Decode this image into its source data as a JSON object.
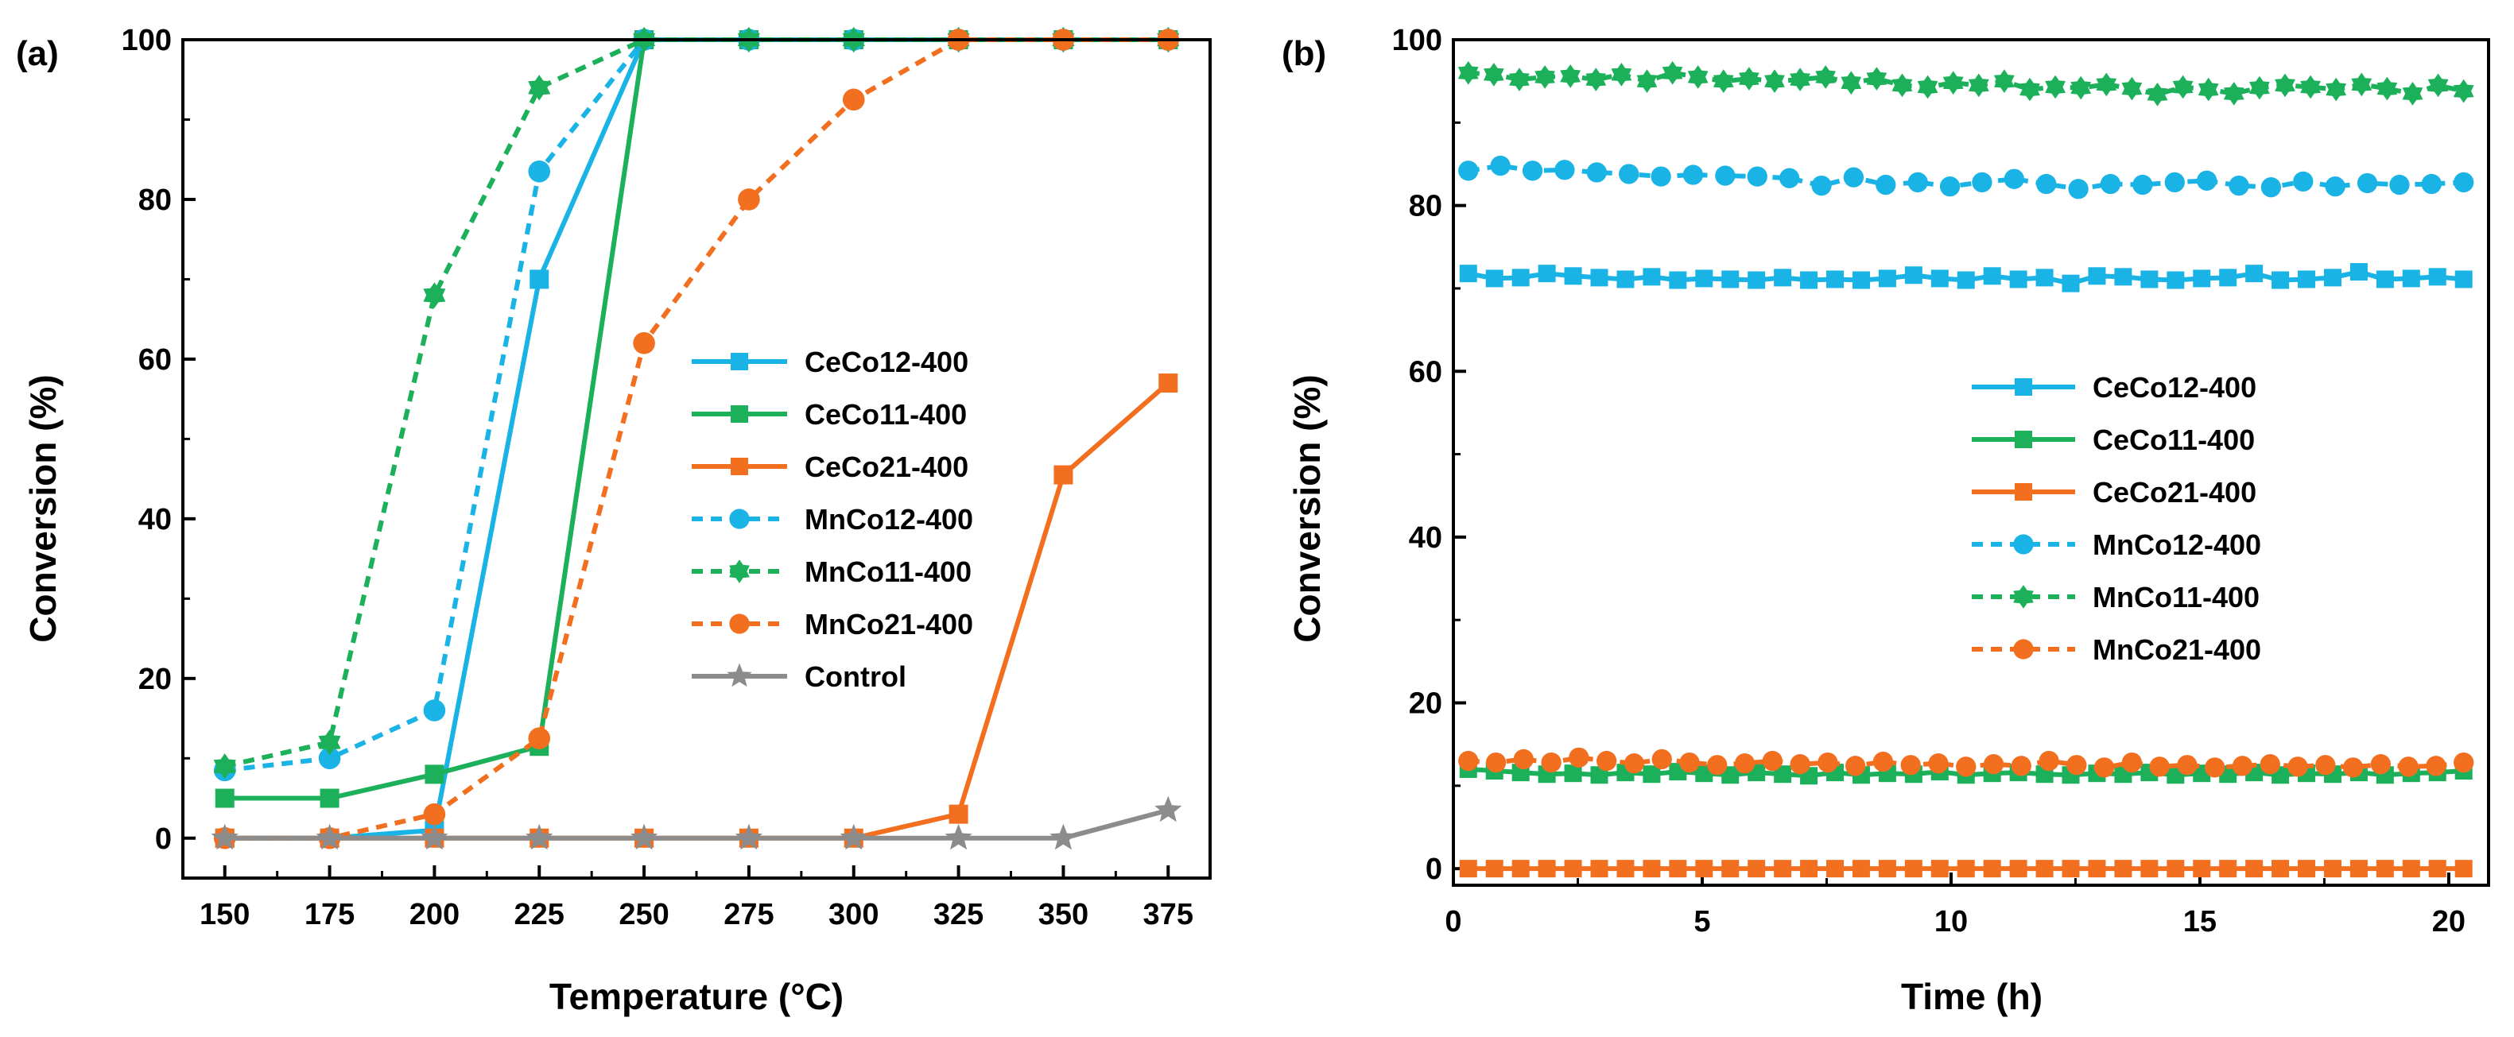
{
  "chart_data": [
    {
      "panel_label": "(a)",
      "type": "line",
      "xlabel": "Temperature (°C)",
      "ylabel": "Conversion (%)",
      "xlim": [
        140,
        385
      ],
      "ylim": [
        -5,
        100
      ],
      "x": [
        150,
        175,
        200,
        225,
        250,
        275,
        300,
        325,
        350,
        375
      ],
      "xticks": [
        "150",
        "175",
        "200",
        "225",
        "250",
        "275",
        "300",
        "325",
        "350",
        "375"
      ],
      "yticks": [
        "0",
        "20",
        "40",
        "60",
        "80",
        "100"
      ],
      "legend_position": "center-right",
      "series": [
        {
          "name": "CeCo12-400",
          "color": "#1AB3E6",
          "dash": "solid",
          "marker": "square",
          "values": [
            0,
            0,
            1,
            70,
            100,
            100,
            100,
            100,
            100,
            100
          ]
        },
        {
          "name": "CeCo11-400",
          "color": "#1DB05A",
          "dash": "solid",
          "marker": "square",
          "values": [
            5,
            5,
            8,
            11.5,
            100,
            100,
            100,
            100,
            100,
            100
          ]
        },
        {
          "name": "CeCo21-400",
          "color": "#F26F1F",
          "dash": "solid",
          "marker": "square",
          "values": [
            0,
            0,
            0,
            0,
            0,
            0,
            0,
            3,
            45.5,
            57
          ]
        },
        {
          "name": "MnCo12-400",
          "color": "#1AB3E6",
          "dash": "dashed",
          "marker": "circle",
          "values": [
            8.5,
            10,
            16,
            83.5,
            100,
            100,
            100,
            100,
            100,
            100
          ]
        },
        {
          "name": "MnCo11-400",
          "color": "#1DB05A",
          "dash": "dashed",
          "marker": "star6",
          "values": [
            9,
            12,
            68,
            94,
            100,
            100,
            100,
            100,
            100,
            100
          ]
        },
        {
          "name": "MnCo21-400",
          "color": "#F26F1F",
          "dash": "dashed",
          "marker": "circle",
          "values": [
            0,
            0,
            3,
            12.5,
            62,
            80,
            92.5,
            100,
            100,
            100
          ]
        },
        {
          "name": "Control",
          "color": "#8C8C8C",
          "dash": "solid",
          "marker": "star5",
          "values": [
            0,
            0,
            0,
            0,
            0,
            0,
            0,
            0,
            0,
            3.5
          ]
        }
      ]
    },
    {
      "panel_label": "(b)",
      "type": "line",
      "xlabel": "Time (h)",
      "ylabel": "Conversion (%)",
      "xlim": [
        0,
        20.8
      ],
      "ylim": [
        -2,
        100
      ],
      "xticks": [
        "0",
        "5",
        "10",
        "15",
        "20"
      ],
      "yticks": [
        "0",
        "20",
        "40",
        "60",
        "80",
        "100"
      ],
      "legend_position": "center-right",
      "series": [
        {
          "name": "CeCo12-400",
          "color": "#1AB3E6",
          "dash": "solid",
          "marker": "square",
          "values": [
            71.8,
            71.2,
            71.3,
            71.8,
            71.5,
            71.3,
            71.1,
            71.4,
            71.0,
            71.2,
            71.1,
            71.0,
            71.3,
            71.0,
            71.1,
            71.0,
            71.2,
            71.6,
            71.2,
            71.0,
            71.5,
            71.1,
            71.3,
            70.6,
            71.5,
            71.4,
            71.1,
            71.0,
            71.2,
            71.3,
            71.8,
            71.0,
            71.1,
            71.3,
            72.0,
            71.1,
            71.2,
            71.4,
            71.1
          ]
        },
        {
          "name": "CeCo11-400",
          "color": "#1DB05A",
          "dash": "solid",
          "marker": "square",
          "values": [
            12.0,
            11.8,
            11.6,
            11.4,
            11.5,
            11.3,
            11.6,
            11.4,
            11.7,
            11.5,
            11.3,
            11.6,
            11.4,
            11.2,
            11.6,
            11.3,
            11.5,
            11.4,
            11.7,
            11.3,
            11.5,
            11.6,
            11.4,
            11.3,
            11.5,
            11.4,
            11.6,
            11.3,
            11.5,
            11.4,
            11.6,
            11.3,
            11.5,
            11.4,
            11.6,
            11.3,
            11.5,
            11.6,
            11.8
          ]
        },
        {
          "name": "CeCo21-400",
          "color": "#F26F1F",
          "dash": "solid",
          "marker": "square",
          "values": [
            0,
            0,
            0,
            0,
            0,
            0,
            0,
            0,
            0,
            0,
            0,
            0,
            0,
            0,
            0,
            0,
            0,
            0,
            0,
            0,
            0,
            0,
            0,
            0,
            0,
            0,
            0,
            0,
            0,
            0,
            0,
            0,
            0,
            0,
            0,
            0,
            0,
            0,
            0
          ]
        },
        {
          "name": "MnCo12-400",
          "color": "#1AB3E6",
          "dash": "dashed",
          "marker": "circle",
          "values": [
            84.2,
            84.8,
            84.2,
            84.3,
            84.0,
            83.8,
            83.5,
            83.7,
            83.6,
            83.5,
            83.3,
            82.4,
            83.4,
            82.5,
            82.8,
            82.3,
            82.8,
            83.2,
            82.6,
            82.0,
            82.6,
            82.5,
            82.8,
            83.0,
            82.4,
            82.2,
            82.9,
            82.3,
            82.7,
            82.5,
            82.6,
            82.8
          ]
        },
        {
          "name": "MnCo11-400",
          "color": "#1DB05A",
          "dash": "dashed",
          "marker": "star6",
          "values": [
            96.0,
            95.8,
            95.2,
            95.5,
            95.6,
            95.2,
            95.8,
            95.0,
            96.0,
            95.5,
            95.0,
            95.3,
            95.0,
            95.2,
            95.5,
            94.8,
            95.3,
            94.5,
            94.3,
            94.8,
            94.5,
            95.0,
            94.0,
            94.3,
            94.2,
            94.6,
            94.1,
            93.4,
            94.3,
            94.0,
            93.5,
            94.2,
            94.5,
            94.3,
            94.0,
            94.6,
            94.1,
            93.5,
            94.5,
            93.8
          ]
        },
        {
          "name": "MnCo21-400",
          "color": "#F26F1F",
          "dash": "dashed",
          "marker": "circle",
          "values": [
            13.0,
            12.8,
            13.2,
            12.8,
            13.4,
            13.0,
            12.7,
            13.2,
            12.8,
            12.5,
            12.7,
            13.0,
            12.6,
            12.8,
            12.4,
            12.9,
            12.5,
            12.7,
            12.3,
            12.6,
            12.4,
            13.0,
            12.5,
            12.2,
            12.8,
            12.3,
            12.5,
            12.2,
            12.4,
            12.6,
            12.3,
            12.5,
            12.2,
            12.6,
            12.3,
            12.4,
            12.8
          ]
        }
      ]
    }
  ]
}
